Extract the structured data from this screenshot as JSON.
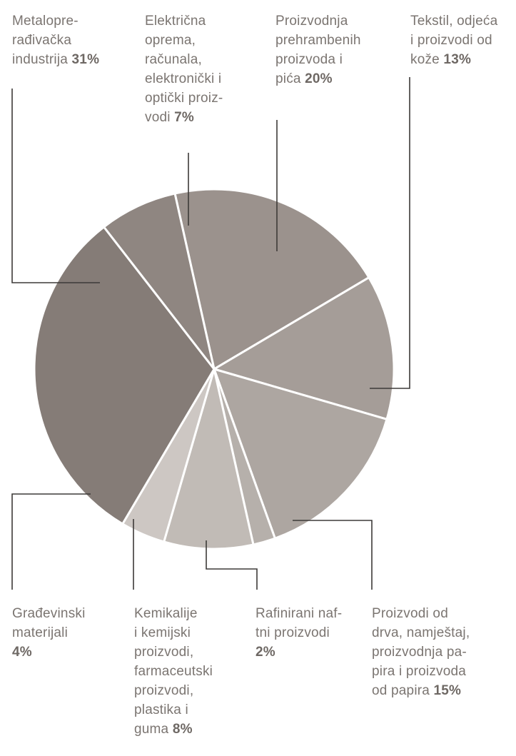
{
  "chart_data": {
    "type": "pie",
    "slices": [
      {
        "name": "Proizvodnja prehrambenih proizvoda i pića",
        "label": "Proizvodnja\nprehrambenih\nproizvoda i\npića",
        "value": 20,
        "pct_label": "20%",
        "color": "#9b928d"
      },
      {
        "name": "Tekstil, odjeća i proizvodi od kože",
        "label": "Tekstil, odjeća\ni proizvodi od\nkože",
        "value": 13,
        "pct_label": "13%",
        "color": "#a59d98"
      },
      {
        "name": "Proizvodi od drva, namještaj, proizvodnja papira i proizvoda od papira",
        "label": "Proizvodi od\ndrva, namještaj,\nproizvodnja pa-\npira i proizvoda\nod papira",
        "value": 15,
        "pct_label": "15%",
        "color": "#ada6a1"
      },
      {
        "name": "Rafinirani naftni proizvodi",
        "label": "Rafinirani naf-\ntni proizvodi",
        "value": 2,
        "pct_label": "2%",
        "color": "#b6b0ab"
      },
      {
        "name": "Kemikalije i kemijski proizvodi, farmaceutski proizvodi, plastika i guma",
        "label": "Kemikalije\ni kemijski\nproizvodi,\nfarmaceutski\nproizvodi,\nplastika i\nguma",
        "value": 8,
        "pct_label": "8%",
        "color": "#c1bbb6"
      },
      {
        "name": "Građevinski materijali",
        "label": "Građevinski\nmaterijali",
        "value": 4,
        "pct_label": "4%",
        "color": "#cdc7c3"
      },
      {
        "name": "Metaloprerađivačka industrija",
        "label": "Metalopre-\nrađivačka\nindustrija",
        "value": 31,
        "pct_label": "31%",
        "color": "#857c77"
      },
      {
        "name": "Električna oprema, računala, elektronički i optički proizvodi",
        "label": "Električna\noprema,\nračunala,\nelektronički i\noptički proiz-\nvodi",
        "value": 7,
        "pct_label": "7%",
        "color": "#8f8681"
      }
    ],
    "title": "",
    "legend": "callout labels around pie"
  }
}
